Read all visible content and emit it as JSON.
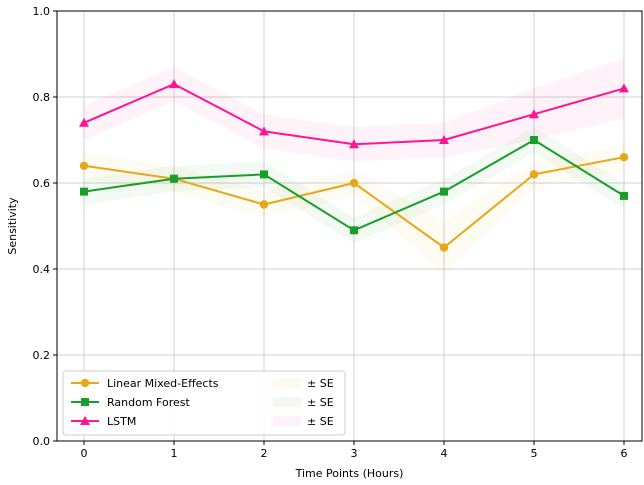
{
  "chart_data": {
    "type": "line",
    "xlabel": "Time Points (Hours)",
    "ylabel": "Sensitivity",
    "x": [
      0,
      1,
      2,
      3,
      4,
      5,
      6
    ],
    "xlim": [
      -0.3,
      6.2
    ],
    "ylim": [
      0.0,
      1.0
    ],
    "yticks": [
      "0.0",
      "0.2",
      "0.4",
      "0.6",
      "0.8",
      "1.0"
    ],
    "xticks": [
      "0",
      "1",
      "2",
      "3",
      "4",
      "5",
      "6"
    ],
    "grid": true,
    "legend_position": "lower-left",
    "series": [
      {
        "name": "Linear Mixed-Effects",
        "band_label": "± SE",
        "color": "#E6A817",
        "marker": "circle",
        "values": [
          0.64,
          0.61,
          0.55,
          0.6,
          0.45,
          0.62,
          0.66
        ],
        "se": [
          0.03,
          0.03,
          0.03,
          0.03,
          0.06,
          0.03,
          0.03
        ]
      },
      {
        "name": "Random Forest",
        "band_label": "± SE",
        "color": "#1A9E2A",
        "marker": "square",
        "values": [
          0.58,
          0.61,
          0.62,
          0.49,
          0.58,
          0.7,
          0.57
        ],
        "se": [
          0.03,
          0.03,
          0.03,
          0.03,
          0.03,
          0.03,
          0.03
        ]
      },
      {
        "name": "LSTM",
        "band_label": "± SE",
        "color": "#FF1493",
        "marker": "triangle",
        "values": [
          0.74,
          0.83,
          0.72,
          0.69,
          0.7,
          0.76,
          0.82
        ],
        "se": [
          0.04,
          0.04,
          0.04,
          0.04,
          0.04,
          0.06,
          0.07
        ]
      }
    ]
  }
}
